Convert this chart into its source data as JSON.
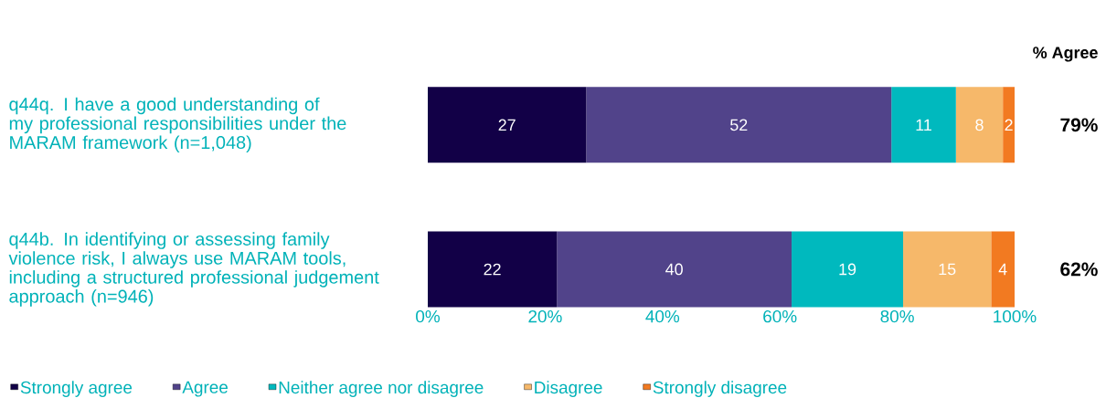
{
  "chart_data": {
    "type": "bar",
    "orientation": "horizontal",
    "stacked": true,
    "categories": [
      "q44q. I have a good understanding of my professional responsibilities under the MARAM framework (n=1,048)",
      "q44b. In identifying or assessing family violence risk, I always use MARAM tools, including a structured professional judgement approach (n=946)"
    ],
    "series": [
      {
        "name": "Strongly agree",
        "color": "#120047",
        "values": [
          27,
          22
        ]
      },
      {
        "name": "Agree",
        "color": "#51438a",
        "values": [
          52,
          40
        ]
      },
      {
        "name": "Neither agree nor disagree",
        "color": "#00b9be",
        "values": [
          11,
          19
        ]
      },
      {
        "name": "Disagree",
        "color": "#f6b86a",
        "values": [
          8,
          15
        ]
      },
      {
        "name": "Strongly disagree",
        "color": "#f27a21",
        "values": [
          2,
          4
        ]
      }
    ],
    "xlim": [
      0,
      100
    ],
    "xticks": [
      {
        "value": 0,
        "label": "0%"
      },
      {
        "value": 20,
        "label": "20%"
      },
      {
        "value": 40,
        "label": "40%"
      },
      {
        "value": 60,
        "label": "60%"
      },
      {
        "value": 80,
        "label": "80%"
      },
      {
        "value": 100,
        "label": "100%"
      }
    ],
    "data_labels": true,
    "legend": "bottom",
    "grid": false,
    "annotations": [
      "% Agree",
      "79%",
      "62%"
    ]
  }
}
